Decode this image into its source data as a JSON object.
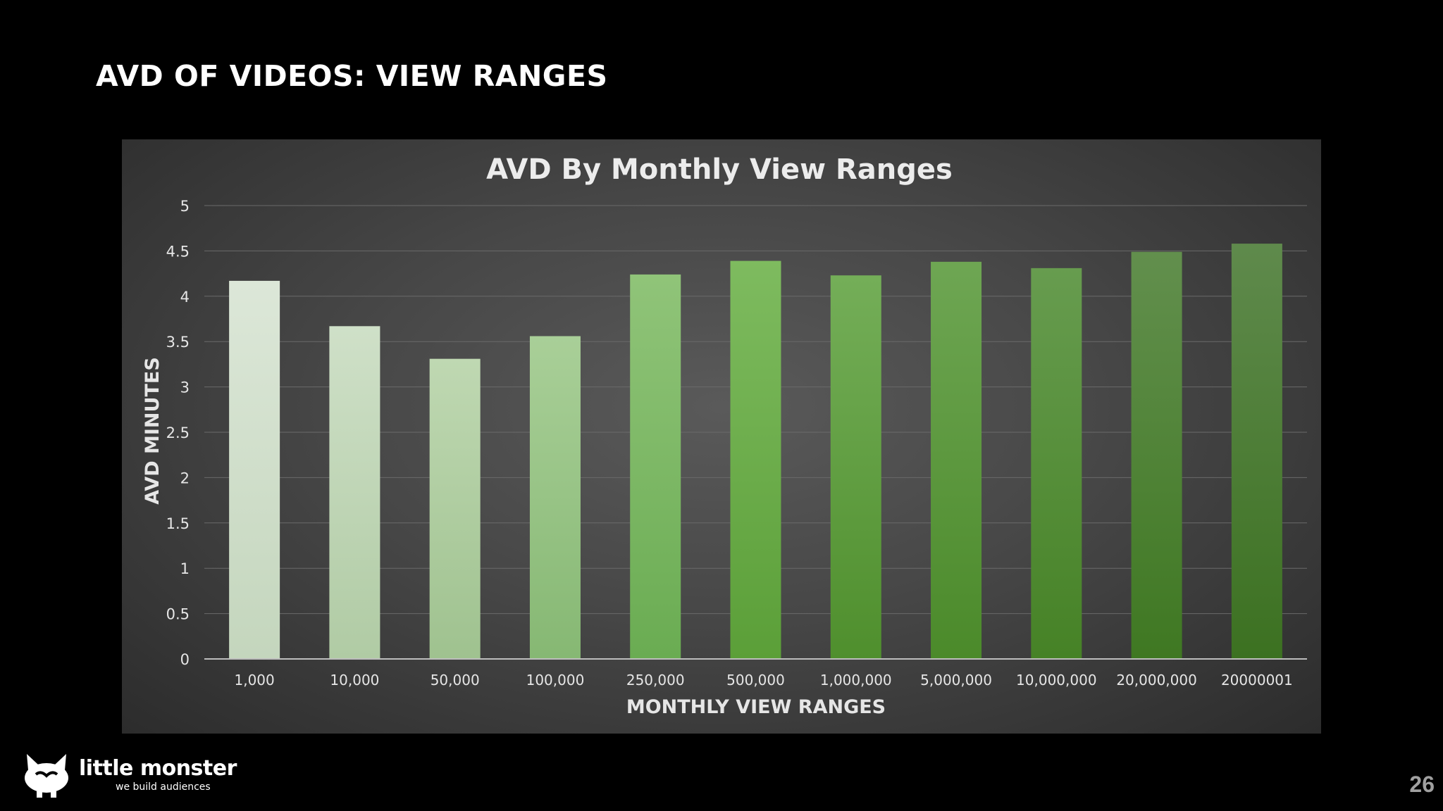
{
  "slide": {
    "title": "AVD OF VIDEOS: VIEW RANGES",
    "page_number": "26",
    "logo": {
      "name": "little monster",
      "tagline": "we build audiences"
    }
  },
  "chart_data": {
    "type": "bar",
    "title": "AVD By Monthly View Ranges",
    "xlabel": "MONTHLY VIEW RANGES",
    "ylabel": "AVD MINUTES",
    "categories": [
      "1,000",
      "10,000",
      "50,000",
      "100,000",
      "250,000",
      "500,000",
      "1,000,000",
      "5,000,000",
      "10,000,000",
      "20,000,000",
      "20000001"
    ],
    "values": [
      4.17,
      3.67,
      3.31,
      3.56,
      4.24,
      4.39,
      4.23,
      4.38,
      4.31,
      4.49,
      4.58
    ],
    "ylim": [
      0,
      5
    ],
    "yticks": [
      "0",
      "0.5",
      "1",
      "1.5",
      "2",
      "2.5",
      "3",
      "3.5",
      "4",
      "4.5",
      "5"
    ],
    "grid": true,
    "legend": "none",
    "bar_colors": [
      [
        "#dce7d8",
        "#c4d6bd"
      ],
      [
        "#cfe0c8",
        "#b0cba4"
      ],
      [
        "#bfd8b2",
        "#9fc28f"
      ],
      [
        "#a9cf98",
        "#86b873"
      ],
      [
        "#90c479",
        "#6aac52"
      ],
      [
        "#7ebb5f",
        "#5b9f38"
      ],
      [
        "#74ae58",
        "#4f8f2d"
      ],
      [
        "#6ea653",
        "#4b8a2a"
      ],
      [
        "#679c4f",
        "#468226"
      ],
      [
        "#628f4d",
        "#3f7822"
      ],
      [
        "#5f8a4c",
        "#3c7121"
      ]
    ],
    "text_color": "#e6e6e6",
    "grid_color": "#6a6a6a"
  }
}
